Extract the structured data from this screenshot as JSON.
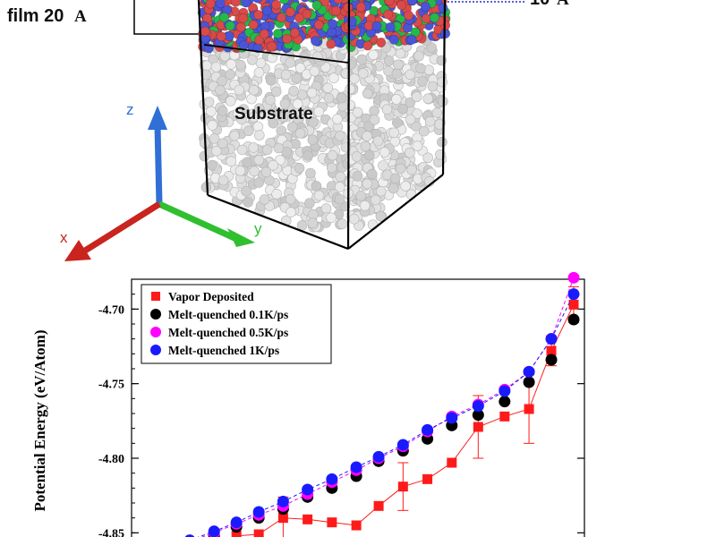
{
  "top_panel": {
    "film_label": "film 20",
    "film_unit": "A",
    "thickness_label": "10",
    "thickness_unit": "A",
    "substrate_label": "Substrate",
    "axes": {
      "z": "z",
      "y": "y",
      "x": "x"
    },
    "colors": {
      "z_axis": "#2f6fd6",
      "y_axis": "#2fbf2f",
      "x_axis": "#c9241d",
      "film_red": "#d94a4a",
      "film_blue": "#4a55d6",
      "film_green": "#25b84a",
      "substrate_grey": "#e8e8e8"
    }
  },
  "chart_data": {
    "type": "scatter",
    "title": "",
    "xlabel": "",
    "ylabel": "Potential Energy (eV/Atom)",
    "ylim": [
      -4.86,
      -4.68
    ],
    "xlim": [
      0,
      1
    ],
    "yticks": [
      -4.7,
      -4.75,
      -4.8,
      -4.85
    ],
    "ytick_labels": [
      "-4.70",
      "-4.75",
      "-4.80",
      "-4.85"
    ],
    "legend_position": "top-left",
    "series": [
      {
        "name": "Vapor Deposited",
        "marker": "square",
        "color": "#ff1a1a",
        "line": "solid",
        "x": [
          0.055,
          0.115,
          0.17,
          0.225,
          0.285,
          0.345,
          0.405,
          0.465,
          0.52,
          0.58,
          0.64,
          0.7,
          0.765,
          0.83,
          0.89,
          0.945,
          1.0
        ],
        "y": [
          -4.86,
          -4.857,
          -4.852,
          -4.851,
          -4.84,
          -4.841,
          -4.843,
          -4.845,
          -4.832,
          -4.819,
          -4.814,
          -4.803,
          -4.779,
          -4.772,
          -4.767,
          -4.728,
          -4.697
        ],
        "y_err": [
          0.0,
          0.0,
          0.0,
          0.0,
          0.014,
          0.0,
          0.0,
          0.0,
          0.0,
          0.016,
          0.0,
          0.0,
          0.021,
          0.0,
          0.023,
          0.01,
          0.012
        ]
      },
      {
        "name": "Melt-quenched 0.1K/ps",
        "marker": "circle",
        "color": "#000000",
        "line": "none",
        "x": [
          0.055,
          0.115,
          0.17,
          0.225,
          0.285,
          0.345,
          0.405,
          0.465,
          0.52,
          0.58,
          0.64,
          0.7,
          0.765,
          0.83,
          0.89,
          0.945,
          1.0
        ],
        "y": [
          -4.857,
          -4.852,
          -4.846,
          -4.84,
          -4.834,
          -4.826,
          -4.82,
          -4.812,
          -4.802,
          -4.795,
          -4.787,
          -4.778,
          -4.771,
          -4.762,
          -4.749,
          -4.734,
          -4.707
        ]
      },
      {
        "name": "Melt-quenched 0.5K/ps",
        "marker": "circle",
        "color": "#ff00ff",
        "line": "dashed",
        "x": [
          0.055,
          0.115,
          0.17,
          0.225,
          0.285,
          0.345,
          0.405,
          0.465,
          0.52,
          0.58,
          0.64,
          0.7,
          0.765,
          0.83,
          0.89,
          0.945,
          1.0
        ],
        "y": [
          -4.856,
          -4.85,
          -4.844,
          -4.838,
          -4.832,
          -4.824,
          -4.816,
          -4.808,
          -4.8,
          -4.792,
          -4.782,
          -4.772,
          -4.764,
          -4.754,
          -4.742,
          -4.72,
          -4.679
        ]
      },
      {
        "name": "Melt-quenched 1K/ps",
        "marker": "circle",
        "color": "#1a1aff",
        "line": "dashed",
        "x": [
          0.055,
          0.115,
          0.17,
          0.225,
          0.285,
          0.345,
          0.405,
          0.465,
          0.52,
          0.58,
          0.64,
          0.7,
          0.765,
          0.83,
          0.89,
          0.945,
          1.0
        ],
        "y": [
          -4.855,
          -4.849,
          -4.843,
          -4.836,
          -4.829,
          -4.821,
          -4.814,
          -4.806,
          -4.799,
          -4.791,
          -4.781,
          -4.773,
          -4.765,
          -4.755,
          -4.742,
          -4.72,
          -4.69
        ]
      }
    ]
  }
}
